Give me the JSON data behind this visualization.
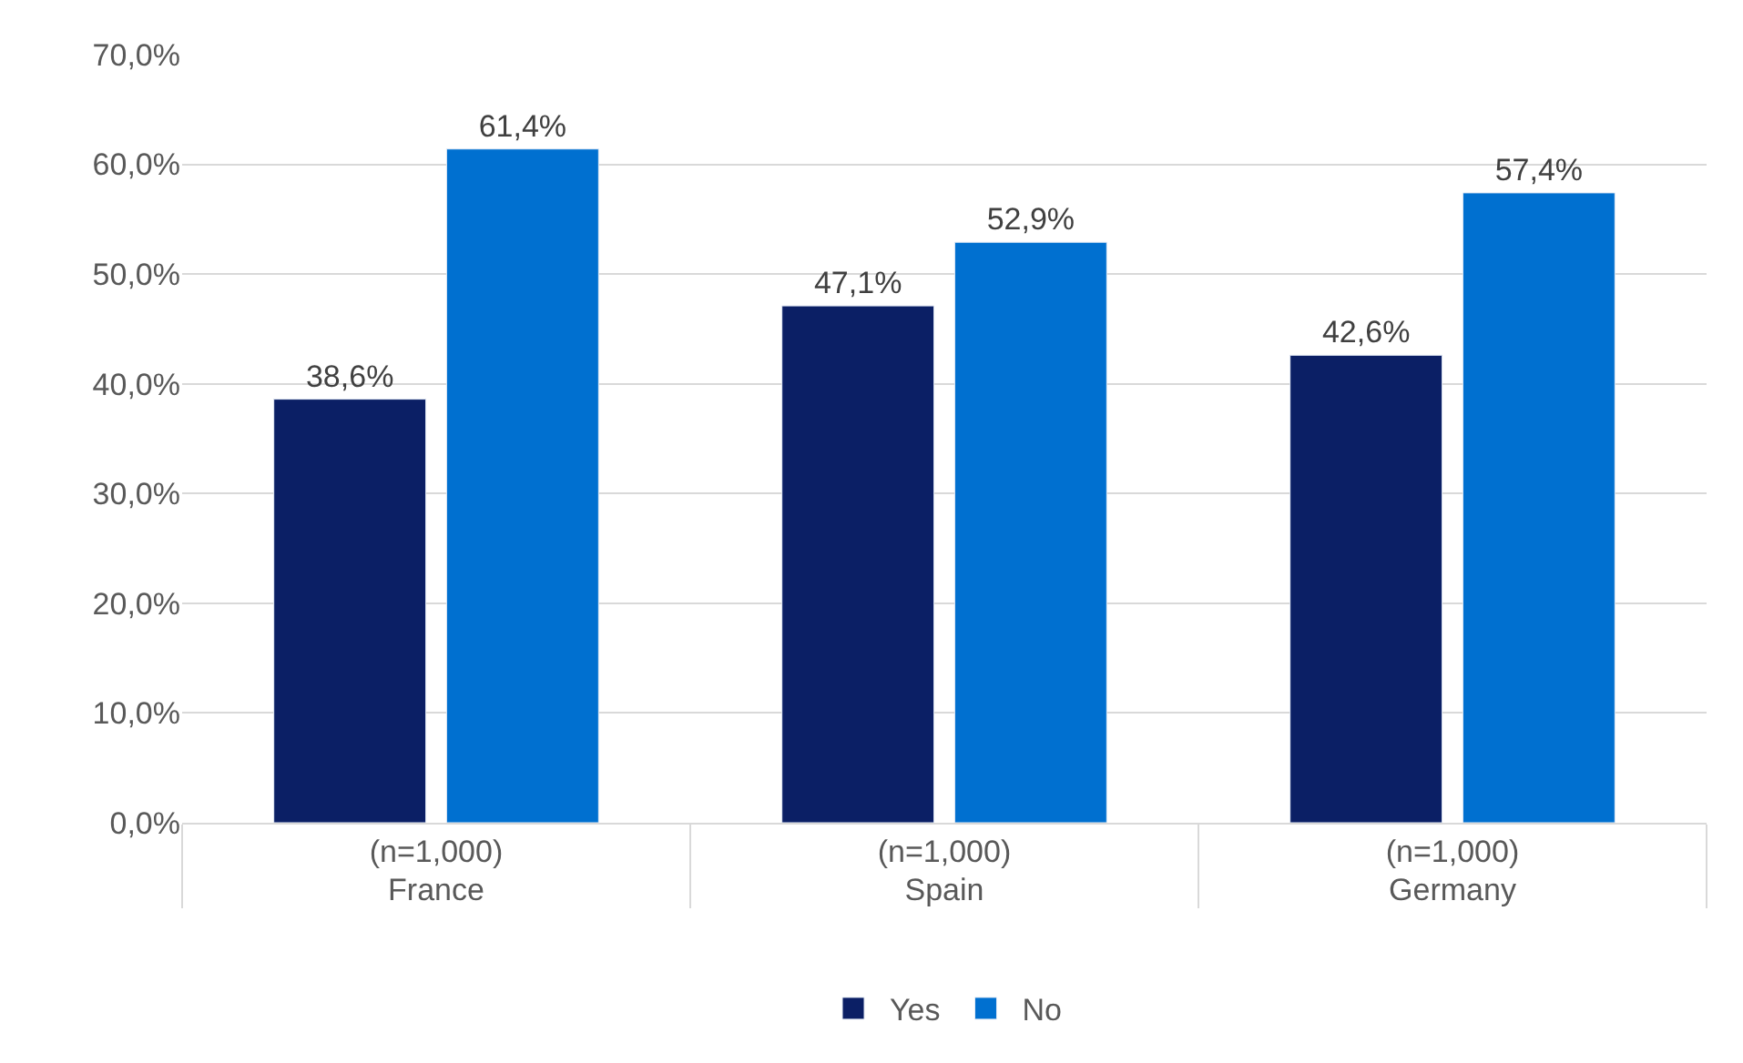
{
  "chart_data": {
    "type": "bar",
    "categories": [
      "(n=1,000)\nFrance",
      "(n=1,000)\nSpain",
      "(n=1,000)\nGermany"
    ],
    "series": [
      {
        "name": "Yes",
        "color": "#0b1f65",
        "values": [
          38.6,
          47.1,
          42.6
        ],
        "value_labels": [
          "38,6%",
          "47,1%",
          "42,6%"
        ]
      },
      {
        "name": "No",
        "color": "#0070d0",
        "values": [
          61.4,
          52.9,
          57.4
        ],
        "value_labels": [
          "61,4%",
          "52,9%",
          "57,4%"
        ]
      }
    ],
    "ylim": [
      0,
      70
    ],
    "yticks": [
      {
        "value": 0,
        "label": "0,0%"
      },
      {
        "value": 10,
        "label": "10,0%"
      },
      {
        "value": 20,
        "label": "20,0%"
      },
      {
        "value": 30,
        "label": "30,0%"
      },
      {
        "value": 40,
        "label": "40,0%"
      },
      {
        "value": 50,
        "label": "50,0%"
      },
      {
        "value": 60,
        "label": "60,0%"
      },
      {
        "value": 70,
        "label": "70,0%"
      }
    ],
    "grid": "y",
    "legend": "bottom"
  }
}
